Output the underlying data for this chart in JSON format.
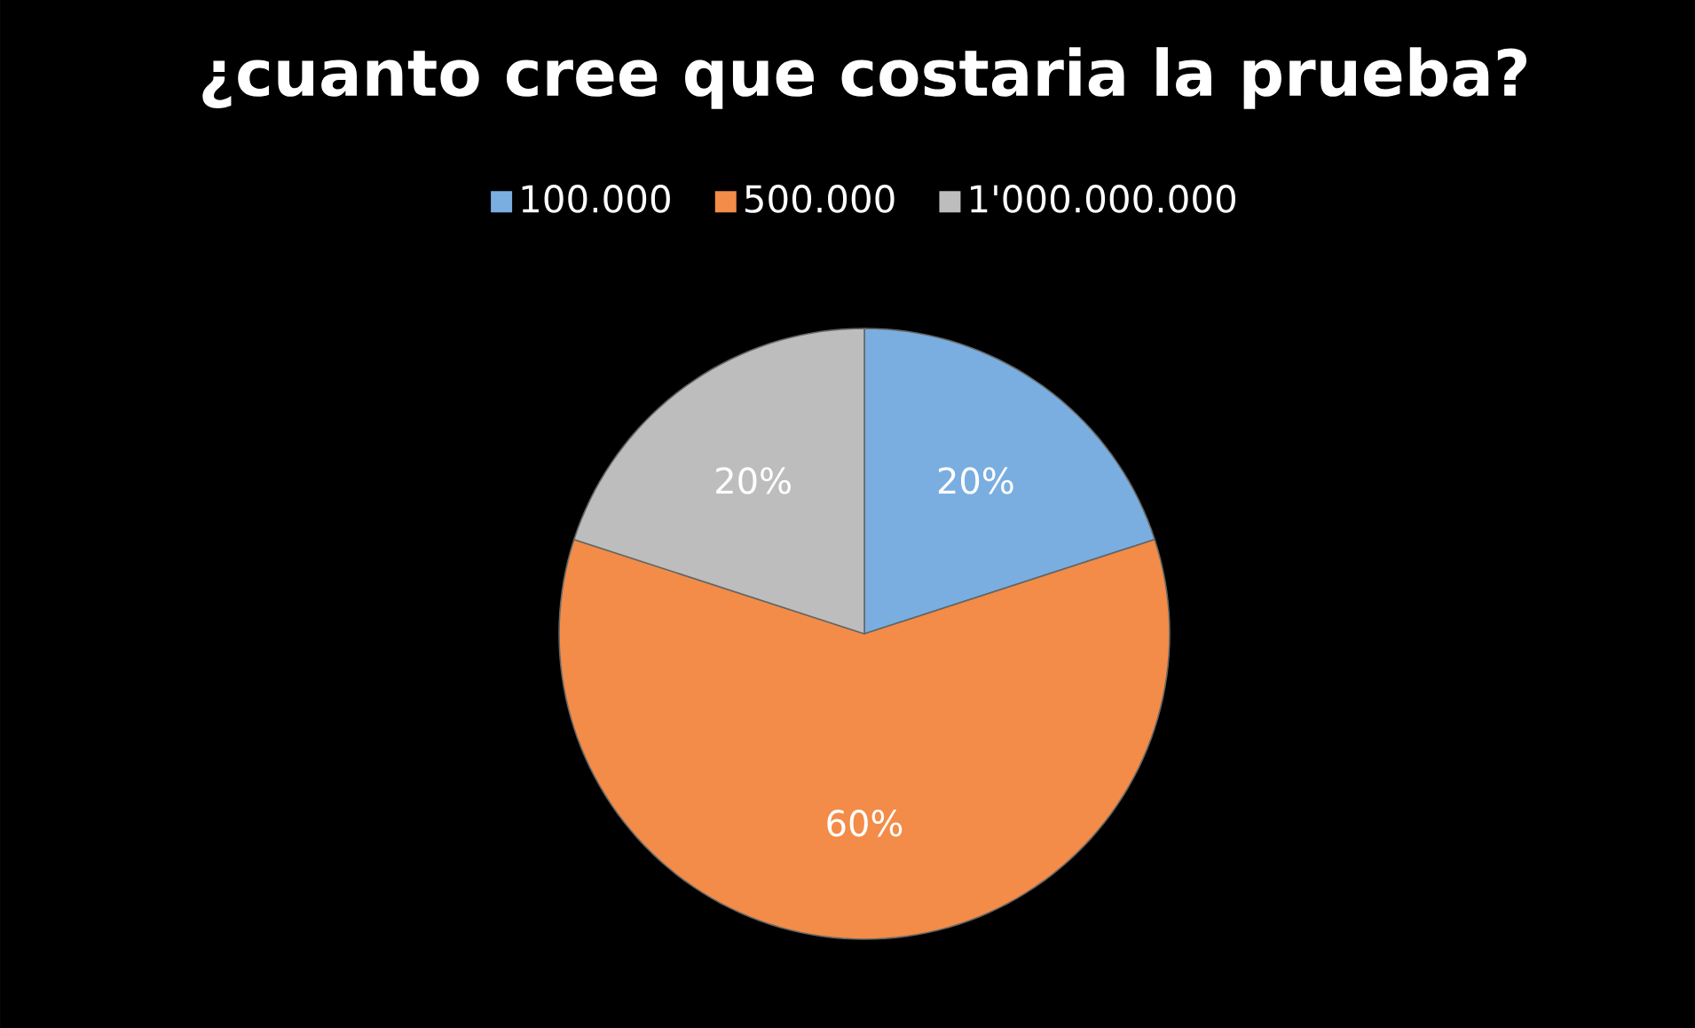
{
  "chart_data": {
    "type": "pie",
    "title": "¿cuanto cree que costaria la prueba?",
    "categories": [
      "100.000",
      "500.000",
      "1'000.000.000"
    ],
    "values": [
      20,
      60,
      20
    ],
    "value_labels": [
      "20%",
      "60%",
      "20%"
    ],
    "colors": [
      "#7aaee0",
      "#f28c48",
      "#bdbdbd"
    ],
    "legend": "top"
  }
}
